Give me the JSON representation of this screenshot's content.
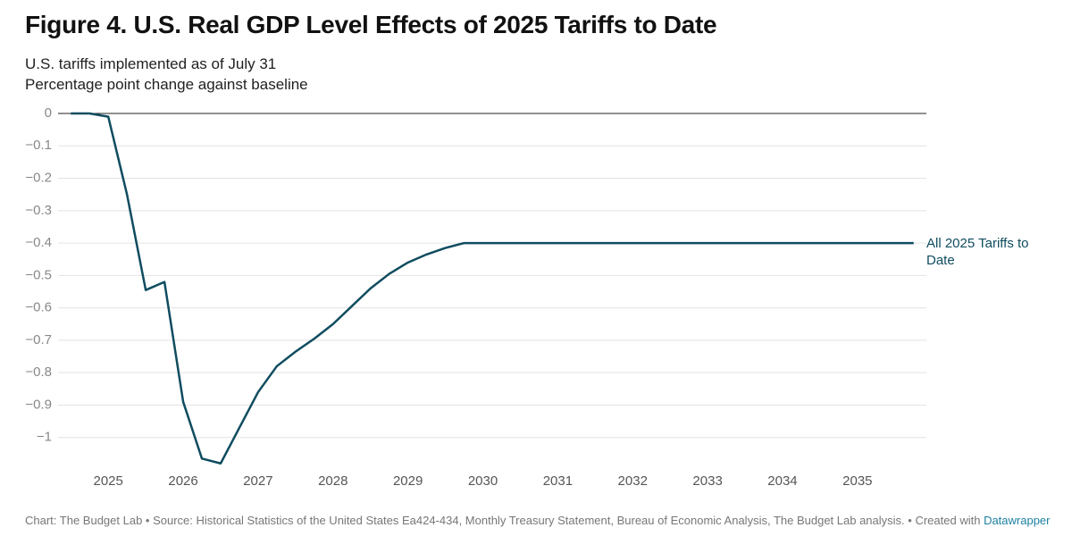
{
  "chart_data": {
    "type": "line",
    "title": "Figure 4. U.S. Real GDP Level Effects of 2025 Tariffs to Date",
    "subtitle": [
      "U.S. tariffs implemented as of July 31",
      "Percentage point change against baseline"
    ],
    "x": [
      2024.5,
      2024.75,
      2025,
      2025.25,
      2025.5,
      2025.75,
      2026,
      2026.25,
      2026.5,
      2026.75,
      2027,
      2027.25,
      2027.5,
      2027.75,
      2028,
      2028.25,
      2028.5,
      2028.75,
      2029,
      2029.25,
      2029.5,
      2029.75,
      2030,
      2030.25,
      2030.5,
      2030.75,
      2031,
      2031.25,
      2031.5,
      2031.75,
      2032,
      2032.25,
      2032.5,
      2032.75,
      2033,
      2033.25,
      2033.5,
      2033.75,
      2034,
      2034.25,
      2034.5,
      2034.75,
      2035,
      2035.25,
      2035.5,
      2035.75
    ],
    "series": [
      {
        "name": "All 2025 Tariffs to Date",
        "color": "#0f4c5f",
        "values": [
          0,
          0,
          -0.01,
          -0.25,
          -0.545,
          -0.52,
          -0.89,
          -1.065,
          -1.08,
          -0.97,
          -0.86,
          -0.78,
          -0.735,
          -0.695,
          -0.65,
          -0.595,
          -0.54,
          -0.495,
          -0.46,
          -0.435,
          -0.415,
          -0.4,
          -0.4,
          -0.4,
          -0.4,
          -0.4,
          -0.4,
          -0.4,
          -0.4,
          -0.4,
          -0.4,
          -0.4,
          -0.4,
          -0.4,
          -0.4,
          -0.4,
          -0.4,
          -0.4,
          -0.4,
          -0.4,
          -0.4,
          -0.4,
          -0.4,
          -0.4,
          -0.4,
          -0.4
        ]
      }
    ],
    "xlim": [
      2024.33,
      2035.92
    ],
    "xticks": [
      2025,
      2026,
      2027,
      2028,
      2029,
      2030,
      2031,
      2032,
      2033,
      2034,
      2035
    ],
    "ylim": [
      -1.1,
      0
    ],
    "yticks": [
      0,
      {
        "value": -0.1,
        "label": "−0.1"
      },
      {
        "value": -0.2,
        "label": "−0.2"
      },
      {
        "value": -0.3,
        "label": "−0.3"
      },
      {
        "value": -0.4,
        "label": "−0.4"
      },
      {
        "value": -0.5,
        "label": "−0.5"
      },
      {
        "value": -0.6,
        "label": "−0.6"
      },
      {
        "value": -0.7,
        "label": "−0.7"
      },
      {
        "value": -0.8,
        "label": "−0.8"
      },
      {
        "value": -0.9,
        "label": "−0.9"
      },
      {
        "value": -1,
        "label": "−1"
      }
    ],
    "grid": true,
    "footer": {
      "source": "Chart: The Budget Lab • Source: Historical Statistics of the United States Ea424-434, Monthly Treasury Statement, Bureau of Economic Analysis, The Budget Lab analysis. •",
      "created": "Created with",
      "tool": "Datawrapper"
    }
  }
}
